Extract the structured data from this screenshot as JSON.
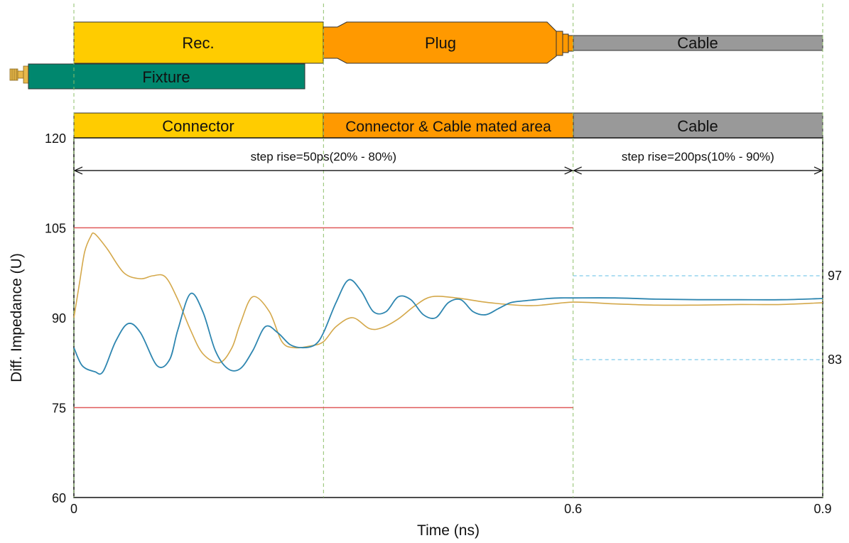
{
  "diagram": {
    "blocks": [
      {
        "key": "rec",
        "label": "Rec.",
        "color": "#FFCC00"
      },
      {
        "key": "plug",
        "label": "Plug",
        "color": "#FF9900"
      },
      {
        "key": "cable",
        "label": "Cable",
        "color": "#999999"
      },
      {
        "key": "fixture",
        "label": "Fixture",
        "color": "#00876E"
      }
    ],
    "sections": [
      {
        "label": "Connector",
        "color": "#FFCC00"
      },
      {
        "label": "Connector & Cable mated area",
        "color": "#FF9900"
      },
      {
        "label": "Cable",
        "color": "#999999"
      }
    ]
  },
  "chart_data": {
    "type": "line",
    "title": "",
    "xlabel": "Time (ns)",
    "ylabel": "Diff. Impedance (U)",
    "xlim": [
      0,
      0.9
    ],
    "ylim": [
      60,
      120
    ],
    "x_ticks": [
      "0",
      "0.6",
      "0.9"
    ],
    "y_ticks": [
      "60",
      "75",
      "90",
      "105",
      "120"
    ],
    "grid": false,
    "section_boundaries": [
      0.3,
      0.6
    ],
    "annotations": [
      {
        "text": "step rise=50ps(20% - 80%)",
        "x_from": 0,
        "x_to": 0.6,
        "y": 115.5
      },
      {
        "text": "step rise=200ps(10% - 90%)",
        "x_from": 0.6,
        "x_to": 0.9,
        "y": 115.5
      }
    ],
    "limits": [
      {
        "label": "",
        "y": 105,
        "x_from": 0,
        "x_to": 0.6,
        "color": "#E05A5A",
        "style": "solid"
      },
      {
        "label": "",
        "y": 75,
        "x_from": 0,
        "x_to": 0.6,
        "color": "#E05A5A",
        "style": "solid"
      },
      {
        "label": "97",
        "y": 97,
        "x_from": 0.6,
        "x_to": 0.9,
        "color": "#7FCBEA",
        "style": "dashed"
      },
      {
        "label": "83",
        "y": 83,
        "x_from": 0.6,
        "x_to": 0.9,
        "color": "#7FCBEA",
        "style": "dashed"
      }
    ],
    "series": [
      {
        "color": "#D4A84A",
        "x": [
          0,
          0.007,
          0.013,
          0.02,
          0.025,
          0.04,
          0.06,
          0.08,
          0.095,
          0.11,
          0.125,
          0.14,
          0.155,
          0.175,
          0.19,
          0.2,
          0.215,
          0.235,
          0.25,
          0.265,
          0.285,
          0.3,
          0.315,
          0.335,
          0.355,
          0.37,
          0.39,
          0.41,
          0.43,
          0.46,
          0.5,
          0.55,
          0.6,
          0.65,
          0.7,
          0.75,
          0.8,
          0.85,
          0.9
        ],
        "values": [
          90,
          96,
          101,
          103.5,
          104,
          101.5,
          97.5,
          96.5,
          97,
          96.8,
          93,
          88,
          84,
          82.5,
          85,
          89,
          93.5,
          91,
          86,
          85,
          85.3,
          86,
          88.5,
          90,
          88.2,
          88.3,
          89.8,
          92,
          93.5,
          93.3,
          92.5,
          92,
          92.6,
          92.3,
          92.1,
          92.1,
          92.2,
          92.2,
          92.5
        ]
      },
      {
        "color": "#2E86B0",
        "x": [
          0,
          0.01,
          0.025,
          0.035,
          0.05,
          0.065,
          0.08,
          0.1,
          0.115,
          0.125,
          0.14,
          0.155,
          0.17,
          0.185,
          0.2,
          0.215,
          0.23,
          0.245,
          0.26,
          0.275,
          0.29,
          0.3,
          0.315,
          0.33,
          0.345,
          0.36,
          0.375,
          0.39,
          0.405,
          0.42,
          0.435,
          0.45,
          0.465,
          0.48,
          0.495,
          0.51,
          0.525,
          0.54,
          0.555,
          0.57,
          0.585,
          0.6,
          0.65,
          0.7,
          0.75,
          0.8,
          0.85,
          0.9
        ],
        "values": [
          85,
          82,
          81,
          81,
          86,
          89,
          87.5,
          82,
          83,
          88,
          94,
          91,
          84.5,
          81.5,
          81.5,
          84.5,
          88.5,
          87.5,
          85.5,
          85,
          85.5,
          87.5,
          92.5,
          96.3,
          94.5,
          91,
          91,
          93.5,
          93,
          90.5,
          90,
          92.5,
          93,
          91,
          90.5,
          91.5,
          92.5,
          92.8,
          93,
          93.2,
          93.3,
          93.3,
          93.3,
          93.1,
          93.0,
          93.0,
          93.0,
          93.2
        ]
      }
    ]
  }
}
